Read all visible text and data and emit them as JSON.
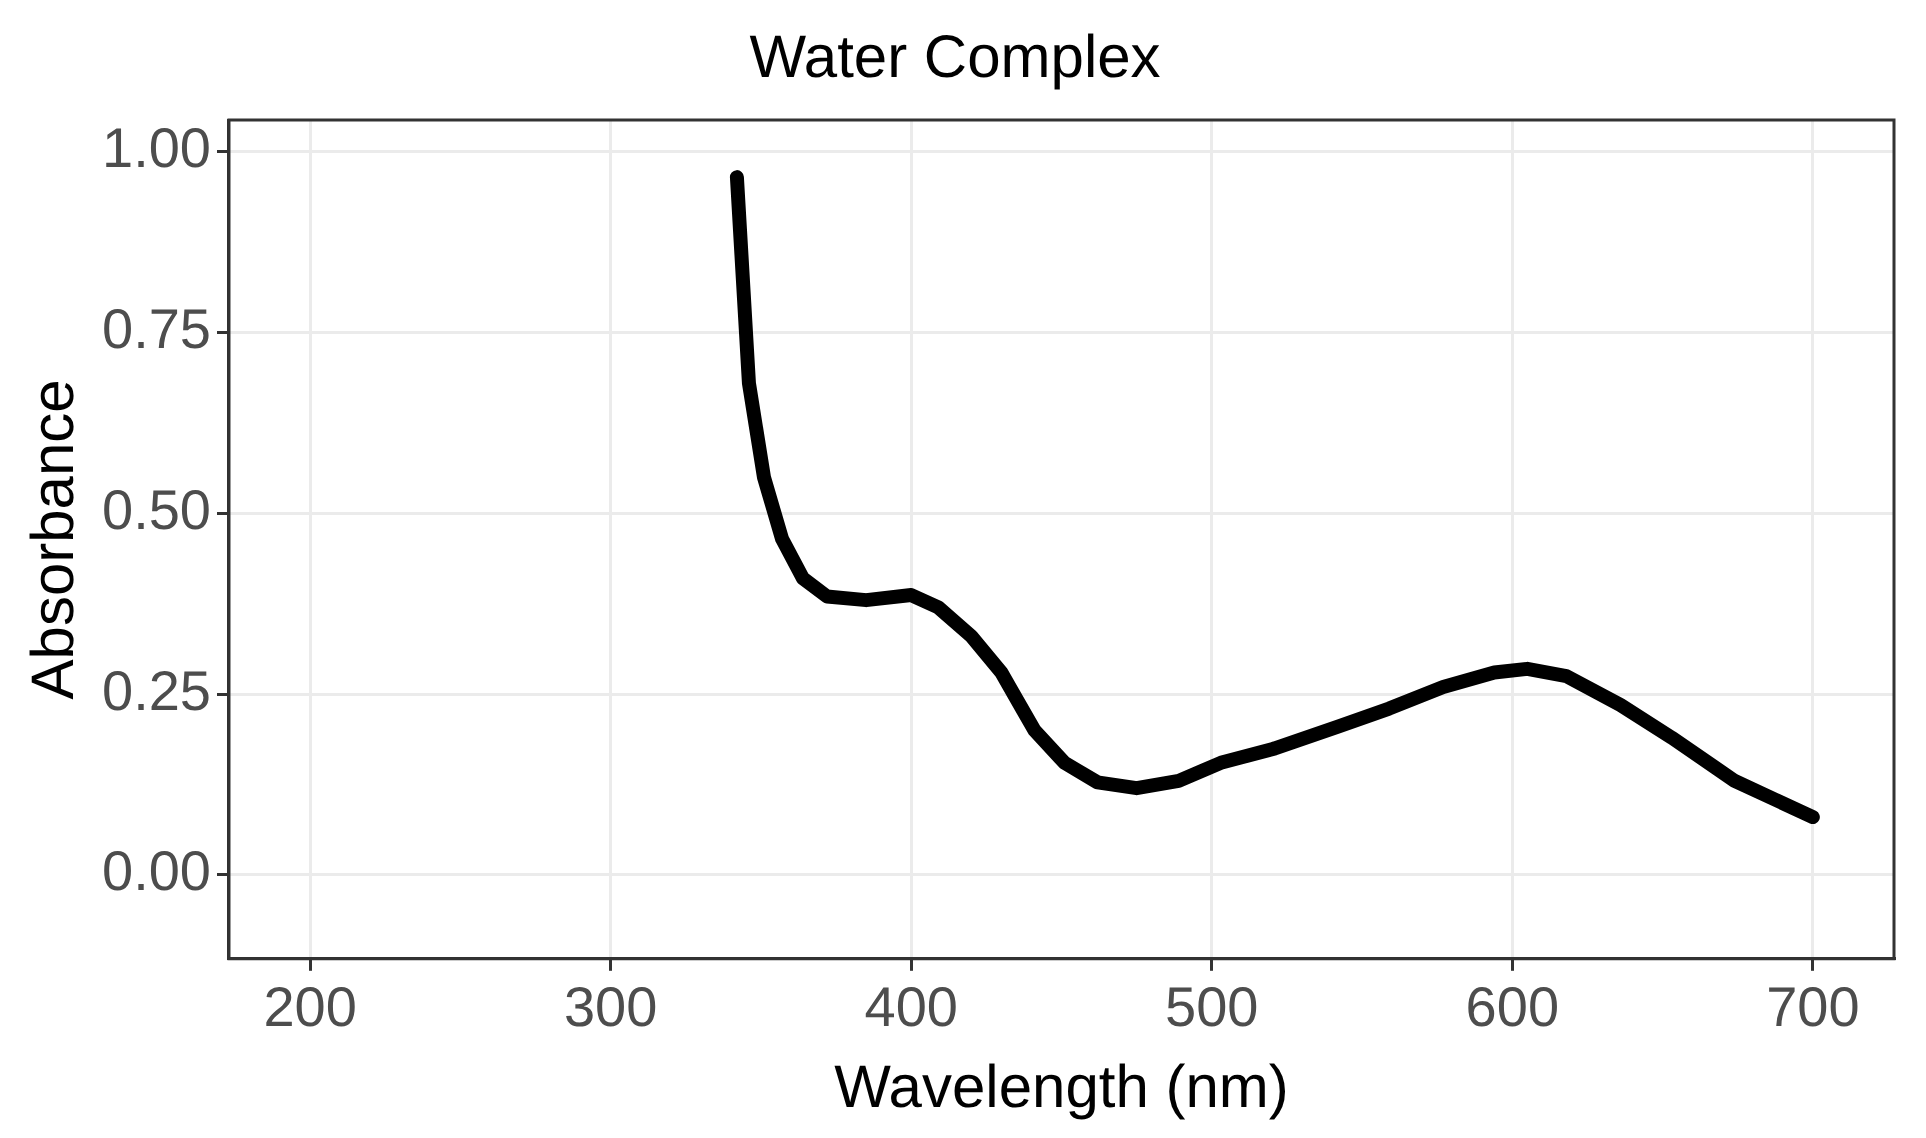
{
  "chart_data": {
    "type": "line",
    "title": "Water Complex",
    "xlabel": "Wavelength (nm)",
    "ylabel": "Absorbance",
    "x": [
      342,
      346,
      351,
      357,
      364,
      372,
      385,
      400,
      409,
      420,
      430,
      441,
      451,
      462,
      475,
      489,
      503,
      521,
      542,
      559,
      577,
      594,
      605,
      618,
      636,
      653,
      674,
      700
    ],
    "series": [
      {
        "color": "#000000",
        "values": [
          0.965,
          0.68,
          0.55,
          0.465,
          0.41,
          0.385,
          0.38,
          0.387,
          0.37,
          0.33,
          0.28,
          0.2,
          0.155,
          0.128,
          0.12,
          0.13,
          0.155,
          0.175,
          0.205,
          0.23,
          0.26,
          0.28,
          0.285,
          0.275,
          0.235,
          0.19,
          0.13,
          0.08
        ]
      }
    ],
    "xlim": [
      173,
      727
    ],
    "xticks": [
      200,
      300,
      400,
      500,
      600,
      700
    ],
    "ylim": [
      -0.116,
      1.044
    ],
    "yticks": [
      {
        "value": 0,
        "label": "0.00"
      },
      {
        "value": 0.25,
        "label": "0.25"
      },
      {
        "value": 0.5,
        "label": "0.50"
      },
      {
        "value": 0.75,
        "label": "0.75"
      },
      {
        "value": 1,
        "label": "1.00"
      }
    ],
    "grid": true,
    "legend": false,
    "marker": "none",
    "line_style": "solid"
  }
}
